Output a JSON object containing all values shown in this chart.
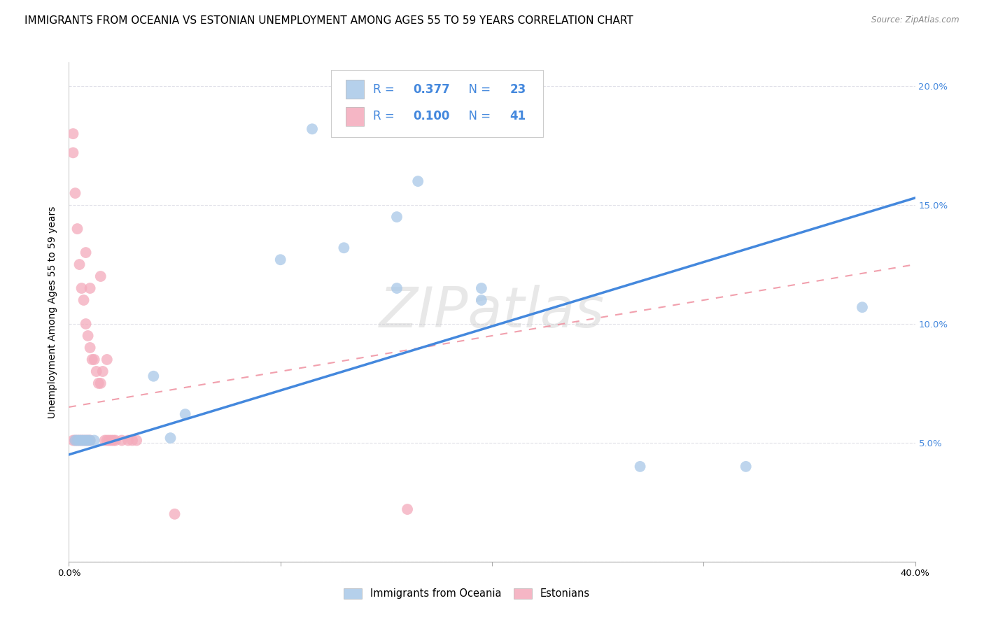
{
  "title": "IMMIGRANTS FROM OCEANIA VS ESTONIAN UNEMPLOYMENT AMONG AGES 55 TO 59 YEARS CORRELATION CHART",
  "source": "Source: ZipAtlas.com",
  "ylabel": "Unemployment Among Ages 55 to 59 years",
  "xlim": [
    0.0,
    0.4
  ],
  "ylim": [
    0.0,
    0.21
  ],
  "xtick_vals": [
    0.0,
    0.1,
    0.2,
    0.3,
    0.4
  ],
  "xtick_labels": [
    "0.0%",
    "",
    "",
    "",
    "40.0%"
  ],
  "ytick_vals": [
    0.0,
    0.05,
    0.1,
    0.15,
    0.2
  ],
  "ytick_labels_right": [
    "",
    "5.0%",
    "10.0%",
    "15.0%",
    "20.0%"
  ],
  "blue_color": "#A8C8E8",
  "pink_color": "#F4AABB",
  "blue_line_color": "#4488DD",
  "pink_line_color": "#EE8899",
  "legend_text_color": "#4488DD",
  "grid_color": "#E0E0E8",
  "legend_R_blue": "0.377",
  "legend_N_blue": "23",
  "legend_R_pink": "0.100",
  "legend_N_pink": "41",
  "legend_label_blue": "Immigrants from Oceania",
  "legend_label_pink": "Estonians",
  "marker_size": 130,
  "blue_scatter_x": [
    0.003,
    0.004,
    0.005,
    0.006,
    0.007,
    0.008,
    0.009,
    0.01,
    0.012,
    0.04,
    0.048,
    0.055,
    0.1,
    0.115,
    0.13,
    0.155,
    0.165,
    0.195,
    0.195,
    0.27,
    0.32,
    0.155,
    0.375
  ],
  "blue_scatter_y": [
    0.051,
    0.051,
    0.051,
    0.051,
    0.051,
    0.051,
    0.051,
    0.051,
    0.051,
    0.078,
    0.052,
    0.062,
    0.127,
    0.182,
    0.132,
    0.115,
    0.16,
    0.11,
    0.115,
    0.04,
    0.04,
    0.145,
    0.107
  ],
  "pink_scatter_x": [
    0.002,
    0.002,
    0.003,
    0.003,
    0.004,
    0.004,
    0.005,
    0.005,
    0.006,
    0.006,
    0.007,
    0.007,
    0.008,
    0.008,
    0.009,
    0.009,
    0.01,
    0.01,
    0.011,
    0.012,
    0.013,
    0.014,
    0.015,
    0.016,
    0.017,
    0.018,
    0.019,
    0.02,
    0.021,
    0.022,
    0.025,
    0.028,
    0.03,
    0.032,
    0.002,
    0.008,
    0.01,
    0.015,
    0.018,
    0.05,
    0.16
  ],
  "pink_scatter_y": [
    0.172,
    0.051,
    0.155,
    0.051,
    0.14,
    0.051,
    0.125,
    0.051,
    0.115,
    0.051,
    0.11,
    0.051,
    0.1,
    0.051,
    0.095,
    0.051,
    0.09,
    0.051,
    0.085,
    0.085,
    0.08,
    0.075,
    0.075,
    0.08,
    0.051,
    0.051,
    0.051,
    0.051,
    0.051,
    0.051,
    0.051,
    0.051,
    0.051,
    0.051,
    0.18,
    0.13,
    0.115,
    0.12,
    0.085,
    0.02,
    0.022
  ],
  "blue_line_y_start": 0.045,
  "blue_line_y_end": 0.153,
  "pink_line_y_start": 0.065,
  "pink_line_y_end": 0.125,
  "right_tick_color": "#4488DD",
  "title_fontsize": 11,
  "axis_label_fontsize": 10,
  "tick_fontsize": 9.5,
  "legend_fontsize": 12,
  "watermark_text": "ZIPatlas",
  "watermark_color": "#CCCCCC",
  "watermark_alpha": 0.45
}
